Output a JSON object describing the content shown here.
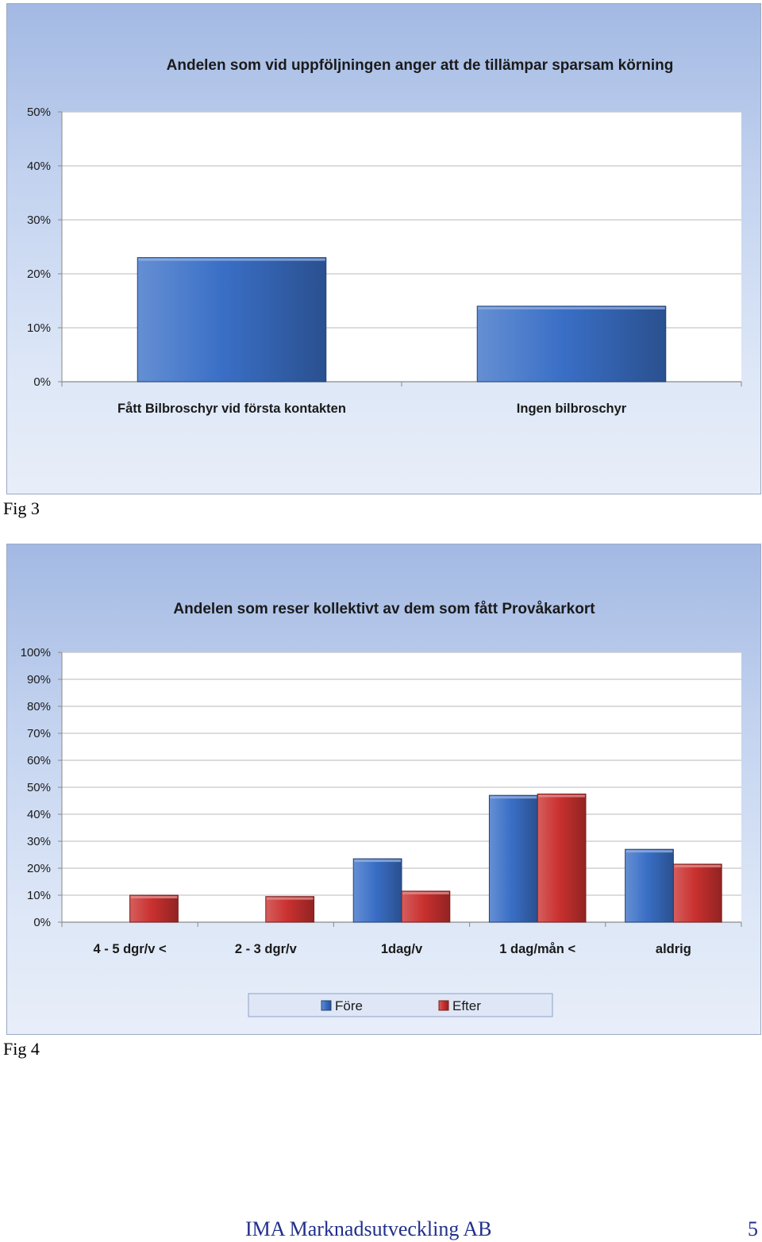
{
  "charts": [
    {
      "id": "fig3",
      "caption": "Fig 3",
      "chart_data": {
        "type": "bar",
        "title": "Andelen som vid uppföljningen anger att de tillämpar sparsam körning",
        "categories": [
          "Fått Bilbroschyr vid första kontakten",
          "Ingen bilbroschyr"
        ],
        "series": [
          {
            "values": [
              23,
              14
            ],
            "color": "#3a6fc6"
          }
        ],
        "ylim": [
          0,
          50
        ],
        "yticks": [
          "0%",
          "10%",
          "20%",
          "30%",
          "40%",
          "50%"
        ],
        "grid": true,
        "legend": "none"
      }
    },
    {
      "id": "fig4",
      "caption": "Fig 4",
      "chart_data": {
        "type": "bar",
        "title": "Andelen som reser kollektivt av dem som fått Provåkarkort",
        "categories": [
          "4 - 5 dgr/v <",
          "2 - 3 dgr/v",
          "1dag/v",
          "1 dag/mån <",
          "aldrig"
        ],
        "series": [
          {
            "name": "Före",
            "values": [
              0,
              0,
              23.5,
              47,
              27
            ],
            "color": "#3a6fc6"
          },
          {
            "name": "Efter",
            "values": [
              10,
              9.5,
              11.5,
              47.5,
              21.5
            ],
            "color": "#c9312f"
          }
        ],
        "ylim": [
          0,
          100
        ],
        "yticks": [
          "0%",
          "10%",
          "20%",
          "30%",
          "40%",
          "50%",
          "60%",
          "70%",
          "80%",
          "90%",
          "100%"
        ],
        "grid": true,
        "legend": "bottom"
      }
    }
  ],
  "footer": {
    "company": "IMA Marknadsutveckling AB",
    "page_number": "5"
  }
}
